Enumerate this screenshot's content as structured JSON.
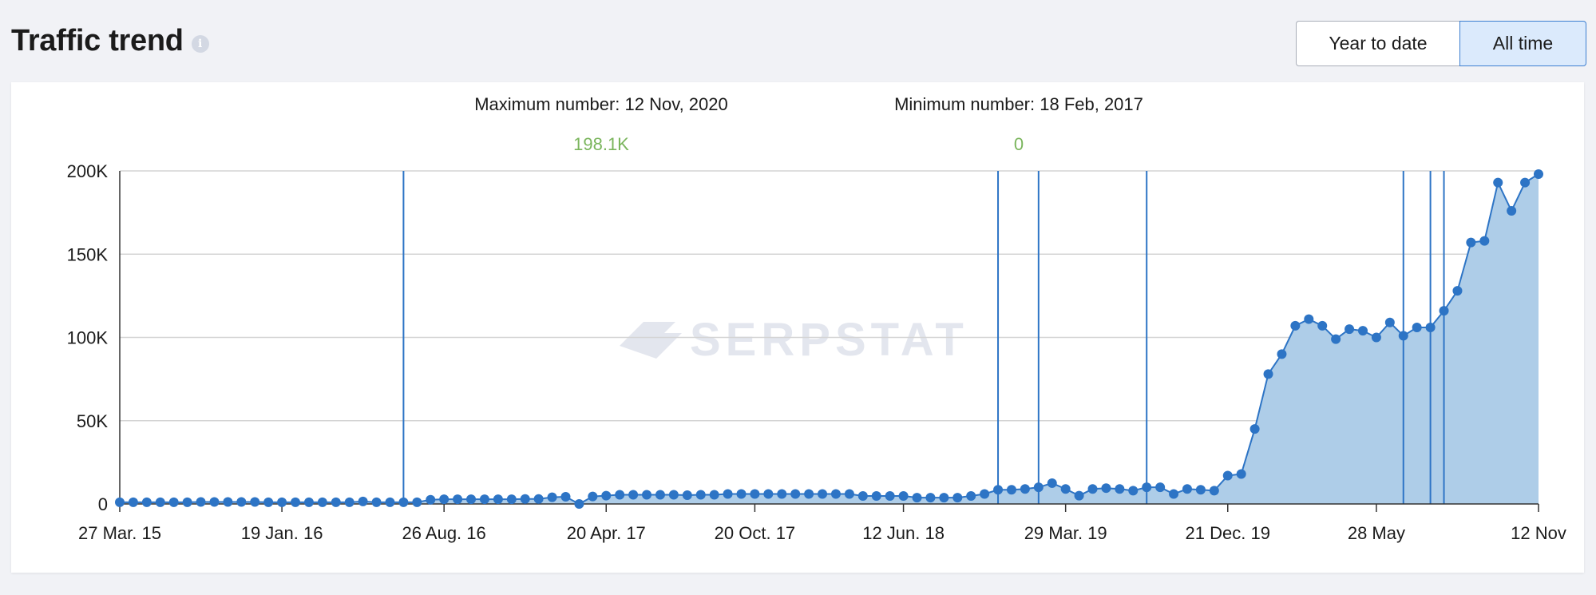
{
  "header": {
    "title": "Traffic trend",
    "info_glyph": "i",
    "buttons": {
      "year_to_date": "Year to date",
      "all_time": "All time"
    }
  },
  "stats": {
    "max_label": "Maximum number: 12 Nov, 2020",
    "max_value": "198.1K",
    "min_label": "Minimum number: 18 Feb, 2017",
    "min_value": "0"
  },
  "watermark": "SERPSTAT",
  "colors": {
    "line": "#2d74c5",
    "area": "#aecde8",
    "grid": "#d4d4d4",
    "accent_green": "#7ab55c",
    "watermark": "#e3e6ee"
  },
  "chart_data": {
    "type": "area",
    "title": "Traffic trend",
    "xlabel": "",
    "ylabel": "",
    "ylim": [
      0,
      200000
    ],
    "y_ticks": [
      0,
      50000,
      100000,
      150000,
      200000
    ],
    "y_tick_labels": [
      "0",
      "50K",
      "100K",
      "150K",
      "200K"
    ],
    "x_tick_labels": [
      "27 Mar. 15",
      "19 Jan. 16",
      "26 Aug. 16",
      "20 Apr. 17",
      "20 Oct. 17",
      "12 Jun. 18",
      "29 Mar. 19",
      "21 Dec. 19",
      "28 May",
      "12 Nov"
    ],
    "x_tick_index": [
      0,
      12,
      24,
      36,
      47,
      58,
      70,
      82,
      93,
      105
    ],
    "event_marker_index": [
      21,
      65,
      68,
      76,
      95,
      97,
      98
    ],
    "series": [
      {
        "name": "Traffic",
        "values": [
          1000,
          1000,
          1000,
          1000,
          1000,
          1000,
          1200,
          1200,
          1200,
          1200,
          1200,
          1000,
          1000,
          1000,
          1000,
          1000,
          1000,
          1000,
          1500,
          1000,
          1000,
          1000,
          1000,
          2500,
          2800,
          2800,
          2800,
          2800,
          2800,
          2800,
          3000,
          3000,
          4000,
          4300,
          0,
          4500,
          5000,
          5500,
          5500,
          5500,
          5500,
          5500,
          5300,
          5500,
          5500,
          6000,
          6000,
          6000,
          6000,
          6000,
          6000,
          6000,
          6000,
          6000,
          6000,
          4800,
          4800,
          4800,
          4800,
          3800,
          3800,
          3800,
          3800,
          4800,
          6000,
          8500,
          8500,
          9000,
          10000,
          12500,
          9000,
          5000,
          9000,
          9500,
          9000,
          8000,
          10000,
          10000,
          6000,
          9000,
          8500,
          8000,
          17000,
          18000,
          45000,
          78000,
          90000,
          107000,
          111000,
          107000,
          99000,
          105000,
          104000,
          100000,
          109000,
          101000,
          106000,
          106000,
          116000,
          128000,
          157000,
          158000,
          193000,
          176000,
          193000,
          198100
        ]
      }
    ]
  }
}
